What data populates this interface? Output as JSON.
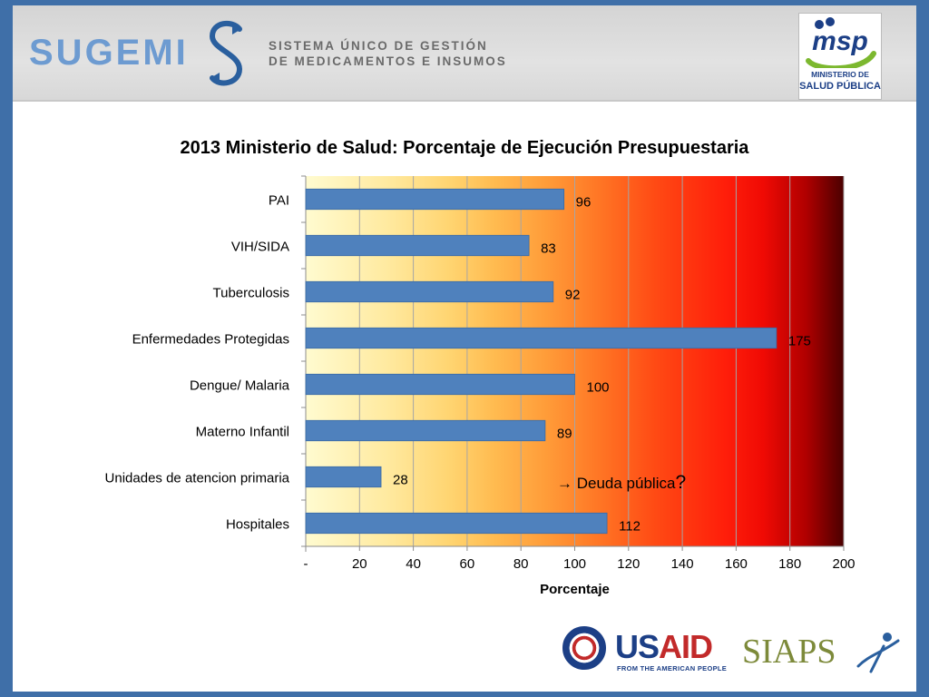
{
  "header": {
    "brand_word": "SUGEMI",
    "brand_subtitle_line1": "SISTEMA ÚNICO DE GESTIÓN",
    "brand_subtitle_line2": "DE MEDICAMENTOS E INSUMOS",
    "msp_logo_text": "msp",
    "ministry_line1": "MINISTERIO DE",
    "ministry_line2": "SALUD PÚBLICA"
  },
  "chart_data": {
    "type": "bar",
    "orientation": "horizontal",
    "title": "2013 Ministerio de Salud: Porcentaje de Ejecución Presupuestaria",
    "xlabel": "Porcentaje",
    "ylabel": "",
    "categories": [
      "PAI",
      "VIH/SIDA",
      "Tuberculosis",
      "Enfermedades Protegidas",
      "Dengue/ Malaria",
      "Materno Infantil",
      "Unidades de atencion primaria",
      "Hospitales"
    ],
    "values": [
      96,
      83,
      92,
      175,
      100,
      89,
      28,
      112
    ],
    "data_labels": [
      "96",
      "83",
      "92",
      "175",
      "100",
      "89",
      "28",
      "112"
    ],
    "xlim": [
      0,
      200
    ],
    "x_ticks": [
      0,
      20,
      40,
      60,
      80,
      100,
      120,
      140,
      160,
      180,
      200
    ],
    "x_tick_labels": [
      "-",
      "20",
      "40",
      "60",
      "80",
      "100",
      "120",
      "140",
      "160",
      "180",
      "200"
    ],
    "grid": "vertical",
    "bar_color": "#4f81bd",
    "legend": "none"
  },
  "annotation": {
    "arrow": "→",
    "text": "Deuda pública",
    "mark": "?"
  },
  "footer": {
    "usaid_us": "US",
    "usaid_aid": "AID",
    "usaid_tagline": "FROM THE AMERICAN PEOPLE",
    "siaps": "SIAPS"
  },
  "colors": {
    "background_frame": "#3f6fa8",
    "gradient_start": "#fffbd0",
    "gradient_end": "#4a0000",
    "brand_blue": "#6d9bd1",
    "ministry_blue": "#1c3f86",
    "usaid_red": "#c22a2a"
  }
}
